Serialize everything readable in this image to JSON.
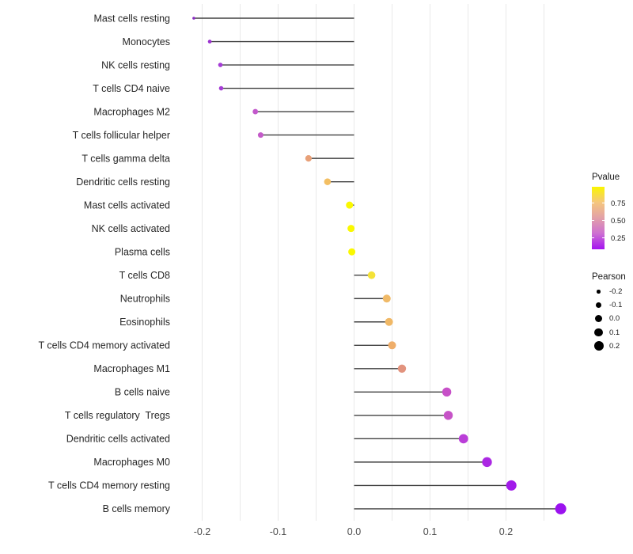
{
  "figure": {
    "background": "#ffffff"
  },
  "chart_data": {
    "type": "lollipop",
    "orientation": "horizontal",
    "title": "",
    "xlabel": "",
    "ylabel": "",
    "xlim": [
      -0.235,
      0.295
    ],
    "grid_step": 0.05,
    "grid_on": true,
    "grid_color": "#e9e9e9",
    "stem_color": "#404040",
    "axis_text_color": "#4d4d4d",
    "category_text_color": "#262626",
    "x_ticks": [
      {
        "value": -0.2,
        "label": "-0.2"
      },
      {
        "value": -0.1,
        "label": "-0.1"
      },
      {
        "value": 0.0,
        "label": "0.0"
      },
      {
        "value": 0.1,
        "label": "0.1"
      },
      {
        "value": 0.2,
        "label": "0.2"
      }
    ],
    "points": [
      {
        "label": "Mast cells resting",
        "pearson": -0.211,
        "pvalue_est": 0.13,
        "color": "#8a2bc2",
        "radius": 1.8
      },
      {
        "label": "Monocytes",
        "pearson": -0.19,
        "pvalue_est": 0.16,
        "color": "#9c33d0",
        "radius": 2.4
      },
      {
        "label": "NK cells resting",
        "pearson": -0.176,
        "pvalue_est": 0.18,
        "color": "#a53cd6",
        "radius": 2.8
      },
      {
        "label": "T cells CD4 naive",
        "pearson": -0.175,
        "pvalue_est": 0.18,
        "color": "#a53cd6",
        "radius": 2.8
      },
      {
        "label": "Macrophages M2",
        "pearson": -0.13,
        "pvalue_est": 0.28,
        "color": "#c258cb",
        "radius": 3.4
      },
      {
        "label": "T cells follicular helper",
        "pearson": -0.123,
        "pvalue_est": 0.29,
        "color": "#c45bc9",
        "radius": 3.5
      },
      {
        "label": "T cells gamma delta",
        "pearson": -0.06,
        "pvalue_est": 0.62,
        "color": "#e8a078",
        "radius": 4.1
      },
      {
        "label": "Dendritic cells resting",
        "pearson": -0.035,
        "pvalue_est": 0.72,
        "color": "#f3bf63",
        "radius": 4.3
      },
      {
        "label": "Mast cells activated",
        "pearson": -0.006,
        "pvalue_est": 0.97,
        "color": "#faf800",
        "radius": 4.5
      },
      {
        "label": "NK cells activated",
        "pearson": -0.004,
        "pvalue_est": 0.97,
        "color": "#faf800",
        "radius": 4.5
      },
      {
        "label": "Plasma cells",
        "pearson": -0.003,
        "pvalue_est": 0.97,
        "color": "#faf800",
        "radius": 4.5
      },
      {
        "label": "T cells CD8",
        "pearson": 0.023,
        "pvalue_est": 0.88,
        "color": "#f4e238",
        "radius": 4.8
      },
      {
        "label": "Neutrophils",
        "pearson": 0.043,
        "pvalue_est": 0.71,
        "color": "#f0ba68",
        "radius": 5.0
      },
      {
        "label": "Eosinophils",
        "pearson": 0.046,
        "pvalue_est": 0.7,
        "color": "#f0b866",
        "radius": 5.0
      },
      {
        "label": "T cells CD4 memory activated",
        "pearson": 0.05,
        "pvalue_est": 0.66,
        "color": "#efae6a",
        "radius": 5.0
      },
      {
        "label": "Macrophages M1",
        "pearson": 0.063,
        "pvalue_est": 0.55,
        "color": "#e2937e",
        "radius": 5.2
      },
      {
        "label": "B cells naive",
        "pearson": 0.122,
        "pvalue_est": 0.31,
        "color": "#c750c8",
        "radius": 5.7
      },
      {
        "label": "T cells regulatory  Tregs",
        "pearson": 0.124,
        "pvalue_est": 0.3,
        "color": "#c653c7",
        "radius": 5.7
      },
      {
        "label": "Dendritic cells activated",
        "pearson": 0.144,
        "pvalue_est": 0.24,
        "color": "#ba3ed8",
        "radius": 5.9
      },
      {
        "label": "Macrophages M0",
        "pearson": 0.175,
        "pvalue_est": 0.17,
        "color": "#ab28e3",
        "radius": 6.2
      },
      {
        "label": "T cells CD4 memory resting",
        "pearson": 0.207,
        "pvalue_est": 0.13,
        "color": "#a21bea",
        "radius": 6.5
      },
      {
        "label": "B cells memory",
        "pearson": 0.272,
        "pvalue_est": 0.1,
        "color": "#9b12ef",
        "radius": 7.0
      }
    ]
  },
  "legend": {
    "position": "right",
    "pvalue": {
      "title": "Pvalue",
      "ticks": [
        "0.75",
        "0.50",
        "0.25"
      ],
      "gradient_top_to_bottom": [
        "#faf500",
        "#f5c67e",
        "#e2a0a8",
        "#cd6fd2",
        "#a413f0"
      ]
    },
    "pearson": {
      "title": "Pearson",
      "dot_color": "#000000",
      "entries": [
        {
          "label": "-0.2",
          "diameter": 4.5
        },
        {
          "label": "-0.1",
          "diameter": 7.0
        },
        {
          "label": "0.0",
          "diameter": 9.0
        },
        {
          "label": "0.1",
          "diameter": 10.5
        },
        {
          "label": "0.2",
          "diameter": 12.0
        }
      ]
    }
  }
}
